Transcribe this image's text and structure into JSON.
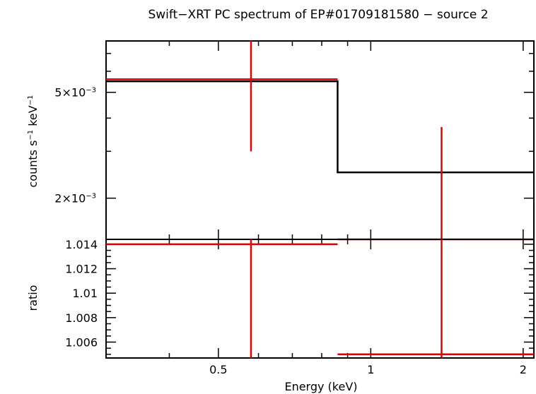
{
  "chart_data": [
    {
      "type": "line",
      "panel": "spectrum",
      "title": "Swift−XRT PC spectrum of EP#01709181580 − source 2",
      "ylabel_parts": [
        "counts s",
        "−1",
        " keV",
        "−1"
      ],
      "yscale": "log",
      "xscale": "log",
      "xlim": [
        0.3,
        2.1
      ],
      "ylim": [
        0.0014,
        0.0078
      ],
      "yticks": [
        {
          "value": 0.005,
          "label_mant": "5×10",
          "label_exp": "−3"
        },
        {
          "value": 0.002,
          "label_mant": "2×10",
          "label_exp": "−3"
        }
      ],
      "series": [
        {
          "kind": "model",
          "color": "#000000",
          "steps": [
            {
              "x0": 0.3,
              "x1": 0.86,
              "y": 0.0055
            },
            {
              "x0": 0.86,
              "x1": 2.1,
              "y": 0.0025
            }
          ]
        },
        {
          "kind": "data",
          "color": "#e00000",
          "points": [
            {
              "x": 0.58,
              "xlo": 0.3,
              "xhi": 0.86,
              "y": 0.0056,
              "ylo": 0.003,
              "yhi": 0.0078
            },
            {
              "x": 1.38,
              "xlo": 0.86,
              "xhi": 2.1,
              "y": 0.0014,
              "ylo": 0.0014,
              "yhi": 0.0037
            }
          ]
        }
      ]
    },
    {
      "type": "line",
      "panel": "ratio",
      "ylabel": "ratio",
      "xlabel": "Energy (keV)",
      "xscale": "log",
      "xlim": [
        0.3,
        2.1
      ],
      "ylim": [
        1.0047,
        1.0144
      ],
      "xticks": [
        {
          "value": 0.5,
          "label": "0.5"
        },
        {
          "value": 1,
          "label": "1"
        },
        {
          "value": 2,
          "label": "2"
        }
      ],
      "yticks": [
        {
          "value": 1.006,
          "label": "1.006"
        },
        {
          "value": 1.008,
          "label": "1.008"
        },
        {
          "value": 1.01,
          "label": "1.01"
        },
        {
          "value": 1.012,
          "label": "1.012"
        },
        {
          "value": 1.014,
          "label": "1.014"
        }
      ],
      "series": [
        {
          "kind": "data",
          "color": "#e00000",
          "points": [
            {
              "x": 0.58,
              "xlo": 0.3,
              "xhi": 0.86,
              "y": 1.014,
              "ylo": 1.0047,
              "yhi": 1.0144
            },
            {
              "x": 1.38,
              "xlo": 0.86,
              "xhi": 2.1,
              "y": 1.005,
              "ylo": 1.0047,
              "yhi": 1.0144
            }
          ]
        }
      ]
    }
  ]
}
